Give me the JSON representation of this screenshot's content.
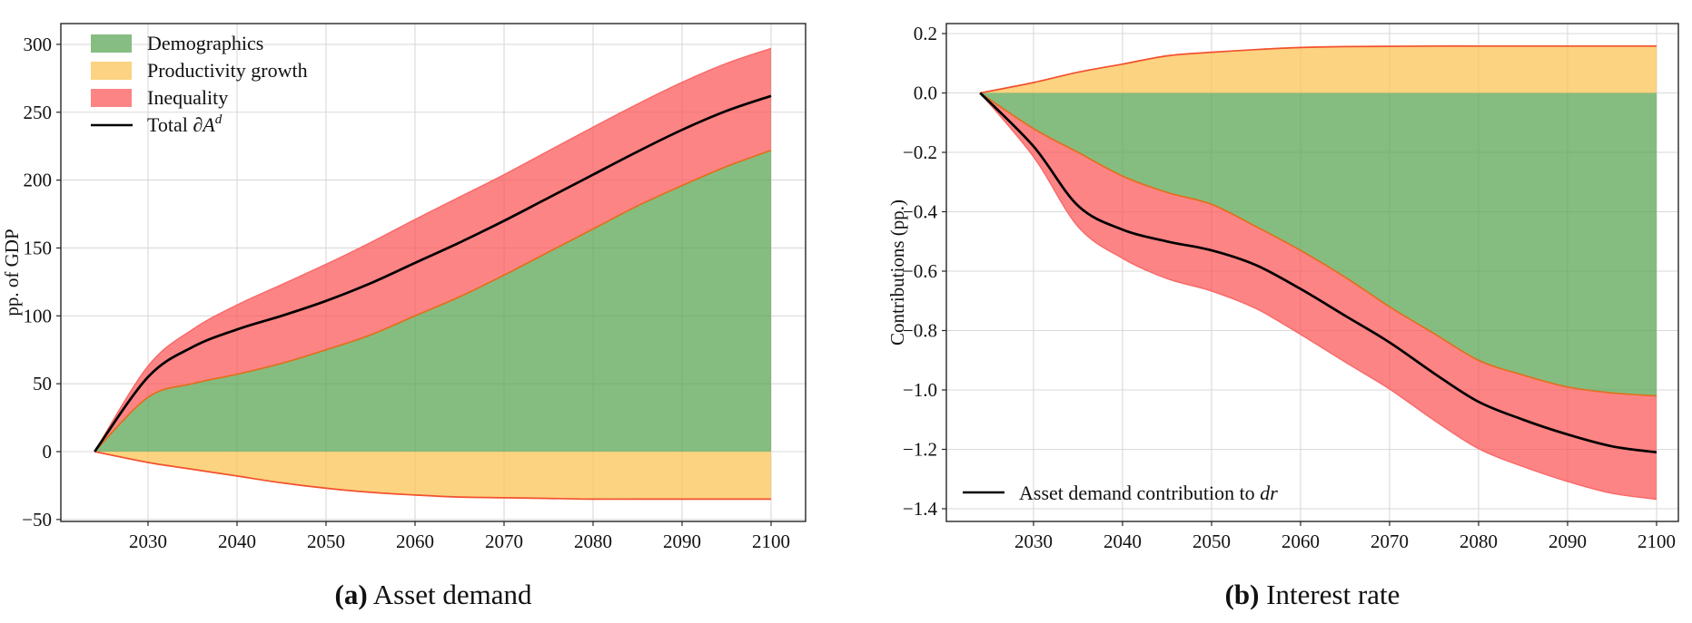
{
  "page": {
    "background": "#ffffff"
  },
  "colors": {
    "demographics_fill": "#56a351",
    "productivity_fill": "#fbc251",
    "inequality_fill": "#fb5454",
    "fill_opacity": 0.72,
    "demographics_edge": "#e2701d",
    "productivity_edge": "#f3502d",
    "inequality_edge": "#f96868",
    "total_line": "#000000",
    "grid": "#d9d9d9",
    "spine": "#262626",
    "tick_label": "#111111",
    "legend_swatch_demographics": "#85bd82",
    "legend_swatch_productivity": "#fcd382",
    "legend_swatch_inequality": "#fc8484"
  },
  "figure": {
    "captions": [
      {
        "tag": "(a)",
        "title": "Asset demand"
      },
      {
        "tag": "(b)",
        "title": "Interest rate"
      }
    ]
  },
  "chart_data": [
    {
      "id": "asset-demand",
      "type": "area",
      "stacked": true,
      "title": "(a) Asset demand",
      "xlabel": "",
      "ylabel": "pp. of GDP",
      "x": [
        2024,
        2030,
        2035,
        2040,
        2045,
        2050,
        2055,
        2060,
        2065,
        2070,
        2075,
        2080,
        2085,
        2090,
        2095,
        2100
      ],
      "series": [
        {
          "name": "Demographics",
          "role": "positive_area",
          "values": [
            0,
            40,
            50,
            57,
            65,
            75,
            86,
            100,
            114,
            130,
            147,
            164,
            181,
            196,
            210,
            222
          ]
        },
        {
          "name": "Productivity growth",
          "role": "negative_area",
          "values": [
            0,
            -8,
            -13,
            -18,
            -23,
            -27,
            -30,
            -32,
            -33.5,
            -34,
            -34.5,
            -35,
            -35,
            -35,
            -35,
            -35
          ]
        },
        {
          "name": "Inequality",
          "role": "band_stacked_on_demographics",
          "values": [
            0,
            23,
            40,
            51,
            58,
            63,
            68,
            71,
            73.5,
            74,
            74.5,
            75,
            75,
            76,
            76,
            75
          ]
        },
        {
          "name": "Total ∂A^d",
          "role": "total_line",
          "values": [
            0,
            55,
            77,
            90,
            100,
            111,
            124,
            139,
            154,
            170,
            187,
            204,
            221,
            237,
            251,
            262
          ]
        }
      ],
      "xlim": [
        2020.2,
        2103.9
      ],
      "ylim": [
        -51.5,
        315.3
      ],
      "xticks": {
        "values": [
          2030,
          2040,
          2050,
          2060,
          2070,
          2080,
          2090,
          2100
        ],
        "labels": [
          "2030",
          "2040",
          "2050",
          "2060",
          "2070",
          "2080",
          "2090",
          "2100"
        ]
      },
      "yticks": {
        "values": [
          -50,
          0,
          50,
          100,
          150,
          200,
          250,
          300
        ],
        "labels": [
          "−50",
          "0",
          "50",
          "100",
          "150",
          "200",
          "250",
          "300"
        ]
      },
      "grid": true,
      "legend": {
        "position": "upper left",
        "entries": [
          {
            "swatch": "fill",
            "color_key": "legend_swatch_demographics",
            "label": "Demographics"
          },
          {
            "swatch": "fill",
            "color_key": "legend_swatch_productivity",
            "label": "Productivity growth"
          },
          {
            "swatch": "fill",
            "color_key": "legend_swatch_inequality",
            "label": "Inequality"
          },
          {
            "swatch": "line",
            "label": "Total ∂",
            "label_italic": "A",
            "label_sup": "d"
          }
        ]
      }
    },
    {
      "id": "interest-rate",
      "type": "area",
      "stacked": true,
      "title": "(b) Interest rate",
      "xlabel": "",
      "ylabel": "Contributions (pp.)",
      "x": [
        2024,
        2030,
        2035,
        2040,
        2045,
        2050,
        2055,
        2060,
        2065,
        2070,
        2075,
        2080,
        2085,
        2090,
        2095,
        2100
      ],
      "series": [
        {
          "name": "Demographics",
          "role": "negative_area",
          "values": [
            0,
            -0.12,
            -0.2,
            -0.28,
            -0.335,
            -0.375,
            -0.45,
            -0.53,
            -0.62,
            -0.72,
            -0.81,
            -0.9,
            -0.95,
            -0.99,
            -1.01,
            -1.02
          ]
        },
        {
          "name": "Productivity growth",
          "role": "positive_area",
          "values": [
            0,
            0.035,
            0.07,
            0.097,
            0.125,
            0.137,
            0.146,
            0.153,
            0.156,
            0.157,
            0.158,
            0.158,
            0.158,
            0.158,
            0.158,
            0.158
          ]
        },
        {
          "name": "Inequality",
          "role": "band_stacked_on_demographics",
          "values": [
            0,
            -0.095,
            -0.25,
            -0.277,
            -0.29,
            -0.292,
            -0.276,
            -0.283,
            -0.286,
            -0.277,
            -0.292,
            -0.298,
            -0.308,
            -0.318,
            -0.338,
            -0.348
          ]
        },
        {
          "name": "Asset demand contribution to dr",
          "role": "total_line",
          "values": [
            0,
            -0.18,
            -0.38,
            -0.46,
            -0.5,
            -0.53,
            -0.58,
            -0.66,
            -0.75,
            -0.84,
            -0.944,
            -1.04,
            -1.1,
            -1.15,
            -1.19,
            -1.21
          ]
        }
      ],
      "xlim": [
        2020.2,
        2102.4
      ],
      "ylim": [
        -1.443,
        0.234
      ],
      "xticks": {
        "values": [
          2030,
          2040,
          2050,
          2060,
          2070,
          2080,
          2090,
          2100
        ],
        "labels": [
          "2030",
          "2040",
          "2050",
          "2060",
          "2070",
          "2080",
          "2090",
          "2100"
        ]
      },
      "yticks": {
        "values": [
          0.2,
          0.0,
          -0.2,
          -0.4,
          -0.6,
          -0.8,
          -1.0,
          -1.2,
          -1.4
        ],
        "labels": [
          "0.2",
          "0.0",
          "−0.2",
          "−0.4",
          "−0.6",
          "−0.8",
          "−1.0",
          "−1.2",
          "−1.4"
        ]
      },
      "grid": true,
      "legend": {
        "position": "lower left",
        "entries": [
          {
            "swatch": "line",
            "label": "Asset demand contribution to ",
            "label_italic": "dr"
          }
        ]
      }
    }
  ]
}
